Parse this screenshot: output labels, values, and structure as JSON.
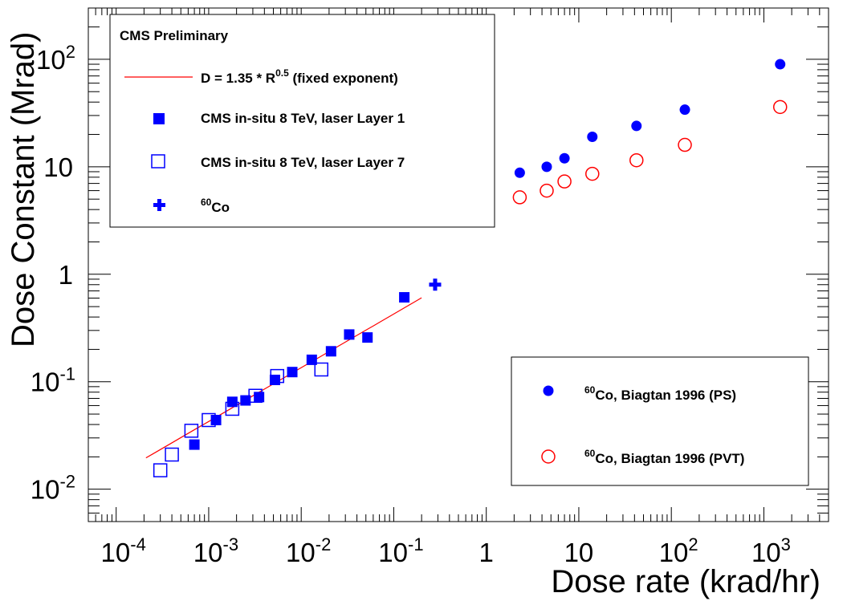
{
  "chart_data": {
    "type": "scatter",
    "xscale": "log",
    "yscale": "log",
    "xlim": [
      5e-05,
      5000
    ],
    "ylim": [
      0.005,
      300
    ],
    "xlabel": "Dose rate (krad/hr)",
    "ylabel": "Dose Constant (Mrad)",
    "x_ticks": [
      {
        "value": 0.0001,
        "base": "10",
        "exp": "-4"
      },
      {
        "value": 0.001,
        "base": "10",
        "exp": "-3"
      },
      {
        "value": 0.01,
        "base": "10",
        "exp": "-2"
      },
      {
        "value": 0.1,
        "base": "10",
        "exp": "-1"
      },
      {
        "value": 1,
        "base": "1",
        "exp": ""
      },
      {
        "value": 10,
        "base": "10",
        "exp": ""
      },
      {
        "value": 100,
        "base": "10",
        "exp": "2"
      },
      {
        "value": 1000,
        "base": "10",
        "exp": "3"
      }
    ],
    "y_ticks": [
      {
        "value": 0.01,
        "base": "10",
        "exp": "-2"
      },
      {
        "value": 0.1,
        "base": "10",
        "exp": "-1"
      },
      {
        "value": 1,
        "base": "1",
        "exp": ""
      },
      {
        "value": 10,
        "base": "10",
        "exp": ""
      },
      {
        "value": 100,
        "base": "10",
        "exp": "2"
      }
    ],
    "legend_top": {
      "title": "CMS Preliminary",
      "placement": "top-left",
      "entries": [
        {
          "label": "D = 1.35 * R",
          "sup": "0.5",
          "suffix": " (fixed exponent)",
          "marker": "line",
          "color": "#ff0000"
        },
        {
          "label": "CMS in-situ 8 TeV, laser Layer 1",
          "sup_pre": "",
          "marker": "filled-square",
          "color": "#0000ff"
        },
        {
          "label": "CMS in-situ 8 TeV, laser Layer 7",
          "sup_pre": "",
          "marker": "open-square",
          "color": "#0000ff"
        },
        {
          "label": "Co",
          "sup_pre": "60",
          "marker": "cross",
          "color": "#0000ff"
        }
      ]
    },
    "legend_bottom": {
      "placement": "bottom-right",
      "entries": [
        {
          "label": "Co, Biagtan 1996 (PS)",
          "sup_pre": "60",
          "marker": "filled-circle",
          "color": "#0000ff"
        },
        {
          "label": "Co, Biagtan 1996 (PVT)",
          "sup_pre": "60",
          "marker": "open-circle",
          "color": "#ff0000"
        }
      ]
    },
    "fit_line": {
      "name": "D = 1.35 * R^0.5 (fixed exponent)",
      "coef": 1.35,
      "exponent": 0.5,
      "x_range": [
        0.00021,
        0.2
      ],
      "color": "#ff0000"
    },
    "series": [
      {
        "key": "layer1",
        "marker": "filled-square",
        "color": "#0000ff",
        "points": [
          [
            0.0007,
            0.026
          ],
          [
            0.0012,
            0.044
          ],
          [
            0.0018,
            0.065
          ],
          [
            0.0025,
            0.067
          ],
          [
            0.0035,
            0.072
          ],
          [
            0.0052,
            0.104
          ],
          [
            0.008,
            0.123
          ],
          [
            0.013,
            0.16
          ],
          [
            0.021,
            0.192
          ],
          [
            0.033,
            0.275
          ],
          [
            0.052,
            0.258
          ],
          [
            0.13,
            0.61
          ]
        ]
      },
      {
        "key": "layer7",
        "marker": "open-square",
        "color": "#0000ff",
        "points": [
          [
            0.0003,
            0.015
          ],
          [
            0.0004,
            0.021
          ],
          [
            0.00065,
            0.035
          ],
          [
            0.001,
            0.044
          ],
          [
            0.0018,
            0.056
          ],
          [
            0.0032,
            0.074
          ],
          [
            0.0055,
            0.113
          ],
          [
            0.0165,
            0.13
          ]
        ]
      },
      {
        "key": "co60",
        "marker": "cross",
        "color": "#0000ff",
        "points": [
          [
            0.28,
            0.8
          ]
        ]
      },
      {
        "key": "biagtan_ps",
        "marker": "filled-circle",
        "color": "#0000ff",
        "points": [
          [
            2.3,
            8.8
          ],
          [
            4.5,
            10
          ],
          [
            7,
            12
          ],
          [
            14,
            19
          ],
          [
            42,
            24
          ],
          [
            140,
            34
          ],
          [
            1500,
            90
          ]
        ]
      },
      {
        "key": "biagtan_pvt",
        "marker": "open-circle",
        "color": "#ff0000",
        "points": [
          [
            2.3,
            5.2
          ],
          [
            4.5,
            6
          ],
          [
            7,
            7.3
          ],
          [
            14,
            8.6
          ],
          [
            42,
            11.5
          ],
          [
            140,
            16
          ],
          [
            1500,
            36
          ]
        ]
      }
    ]
  }
}
